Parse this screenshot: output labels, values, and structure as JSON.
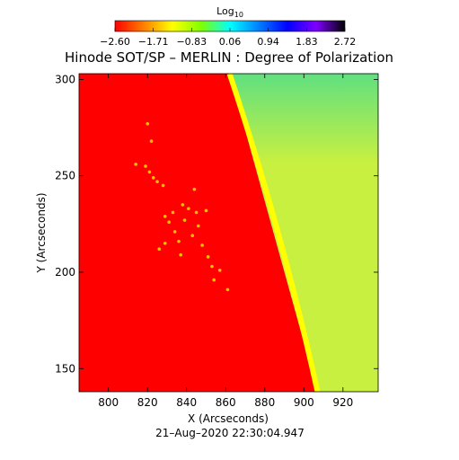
{
  "chart_data": {
    "type": "heatmap",
    "title": "Hinode SOT/SP – MERLIN : Degree of Polarization",
    "xlabel": "X (Arcseconds)",
    "ylabel": "Y (Arcseconds)",
    "date_label": "21–Aug–2020 22:30:04.947",
    "x_ticks": [
      800,
      820,
      840,
      860,
      880,
      900,
      920
    ],
    "y_ticks": [
      150,
      200,
      250,
      300
    ],
    "xlim": [
      785,
      938
    ],
    "ylim": [
      138,
      303
    ],
    "colorbar": {
      "label_main": "Log",
      "label_sub": "10",
      "min": -2.6,
      "max": 2.72,
      "ticks": [
        "−2.60",
        "−1.71",
        "−0.83",
        "0.06",
        "0.94",
        "1.83",
        "2.72"
      ],
      "colors": [
        "#ff0000",
        "#ff7f00",
        "#ffff00",
        "#7fff00",
        "#00ffff",
        "#007fff",
        "#0000ff",
        "#7f00ff",
        "#000000"
      ]
    },
    "regions": {
      "disk_color": "#ff0000",
      "limb_color": "#ffff00",
      "offlimb_color": "#c8f040",
      "offlimb_top_color": "#60e080",
      "limb_top": [
        862,
        303
      ],
      "limb_bottom": [
        907,
        138
      ]
    },
    "bright_points": [
      [
        819,
        255
      ],
      [
        821,
        252
      ],
      [
        823,
        249
      ],
      [
        825,
        247
      ],
      [
        828,
        245
      ],
      [
        829,
        229
      ],
      [
        831,
        226
      ],
      [
        833,
        231
      ],
      [
        834,
        221
      ],
      [
        836,
        216
      ],
      [
        838,
        235
      ],
      [
        839,
        227
      ],
      [
        841,
        233
      ],
      [
        843,
        219
      ],
      [
        845,
        231
      ],
      [
        846,
        224
      ],
      [
        848,
        214
      ],
      [
        850,
        232
      ],
      [
        829,
        215
      ],
      [
        851,
        208
      ],
      [
        853,
        203
      ],
      [
        854,
        196
      ],
      [
        822,
        268
      ],
      [
        820,
        277
      ],
      [
        814,
        256
      ],
      [
        826,
        212
      ],
      [
        844,
        243
      ],
      [
        837,
        209
      ],
      [
        857,
        201
      ],
      [
        861,
        191
      ]
    ]
  }
}
